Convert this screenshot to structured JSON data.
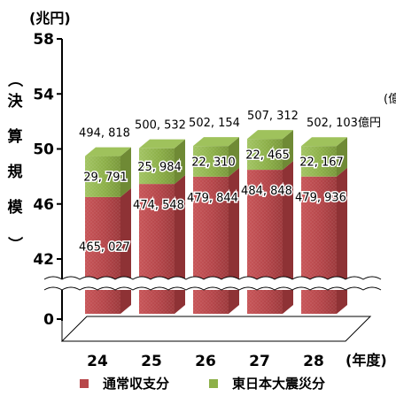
{
  "chart_data": {
    "type": "bar",
    "stacked": true,
    "units": "(兆円)",
    "ylabel": "（決算規模）",
    "xunit": "(年度)",
    "categories": [
      "24",
      "25",
      "26",
      "27",
      "28"
    ],
    "yticks": [
      0,
      42,
      46,
      50,
      54,
      58
    ],
    "axis_break": [
      0,
      42
    ],
    "series": [
      {
        "name": "通常収支分",
        "color": "#b7474a",
        "values": [
          465027,
          474548,
          479844,
          484848,
          479936
        ],
        "labels": [
          "465, 027",
          "474, 548",
          "479, 844",
          "484, 848",
          "479, 936"
        ]
      },
      {
        "name": "東日本大震災分",
        "color": "#8db049",
        "values": [
          29791,
          25984,
          22310,
          22465,
          22167
        ],
        "labels": [
          "29, 791",
          "25, 984",
          "22, 310",
          "22, 465",
          "22, 167"
        ]
      }
    ],
    "totals": [
      494818,
      500532,
      502154,
      507312,
      502103
    ],
    "total_labels": [
      "494, 818",
      "500, 532",
      "502, 154",
      "507, 312",
      "502, 103億円"
    ],
    "clipped_side_text": "(億"
  }
}
